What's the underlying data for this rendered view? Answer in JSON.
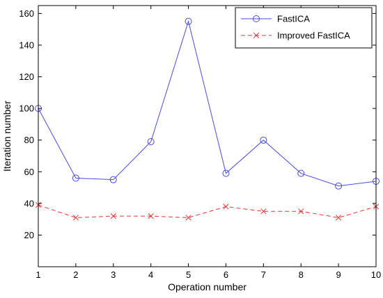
{
  "chart_data": {
    "type": "line",
    "title": "",
    "xlabel": "Operation number",
    "ylabel": "Iteration number",
    "x": [
      1,
      2,
      3,
      4,
      5,
      6,
      7,
      8,
      9,
      10
    ],
    "xlim": [
      1,
      10
    ],
    "ylim": [
      0,
      165
    ],
    "xticks": [
      1,
      2,
      3,
      4,
      5,
      6,
      7,
      8,
      9,
      10
    ],
    "yticks": [
      20,
      40,
      60,
      80,
      100,
      120,
      140,
      160
    ],
    "grid": false,
    "legend_position": "top-right",
    "series": [
      {
        "name": "FastICA",
        "values": [
          100,
          56,
          55,
          79,
          155,
          59,
          80,
          59,
          51,
          54
        ],
        "color": "#4a4ae0",
        "marker": "circle",
        "line_style": "solid"
      },
      {
        "name": "Improved FastICA",
        "values": [
          39,
          31,
          32,
          32,
          31,
          38,
          35,
          35,
          31,
          38
        ],
        "color": "#e83030",
        "marker": "x",
        "line_style": "dashed"
      }
    ]
  }
}
